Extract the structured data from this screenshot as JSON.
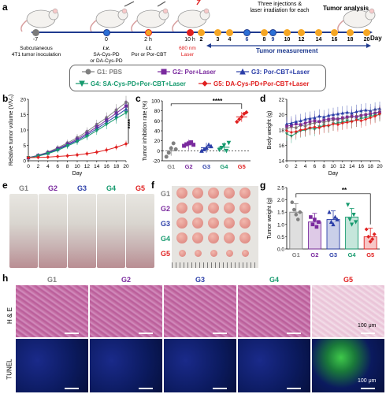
{
  "panel_labels": {
    "a": "a",
    "b": "b",
    "c": "c",
    "d": "d",
    "e": "e",
    "f": "f",
    "g": "g",
    "h": "h"
  },
  "timeline": {
    "top_note": "Three injections &\nlaser irradiation for each",
    "tumor_analysis": "Tumor analysis",
    "day_label": "Day",
    "tumor_measurement": "Tumor measurement",
    "mouse_steps": [
      {
        "day": "-7",
        "line1": "Subcutaneous",
        "line2": "4T1 tumor inoculation"
      },
      {
        "day": "0",
        "line1": "i.v.",
        "line2": "SA-Cys-PD",
        "line3": "or DA-Cys-PD"
      },
      {
        "day": "2 h",
        "line1": "i.t.",
        "line2": "Por or Por-CBT"
      },
      {
        "day": "10 h",
        "line1": "680 nm",
        "line2": "Laser"
      }
    ],
    "days": [
      "2",
      "3",
      "4",
      "6",
      "8",
      "9",
      "10",
      "12",
      "14",
      "16",
      "18",
      "20"
    ],
    "colors": {
      "arrow": "#1f3b8f",
      "dot_orange": "#f5a623",
      "dot_blue": "#2b6fd6",
      "laser": "#e02020",
      "grey": "#7a7a7a"
    }
  },
  "legend": {
    "items": [
      {
        "label": "G1: PBS",
        "color": "#808080",
        "marker": "circle"
      },
      {
        "label": "G2: Por+Laser",
        "color": "#7a2a9e",
        "marker": "square"
      },
      {
        "label": "G3: Por-CBT+Laser",
        "color": "#2b3ea8",
        "marker": "triangle"
      },
      {
        "label": "G4: SA-Cys-PD+Por-CBT+Laser",
        "color": "#169a6e",
        "marker": "triangle-down"
      },
      {
        "label": "G5: DA-Cys-PD+Por-CBT+Laser",
        "color": "#e02020",
        "marker": "diamond"
      }
    ]
  },
  "groups": [
    "G1",
    "G2",
    "G3",
    "G4",
    "G5"
  ],
  "group_colors": [
    "#808080",
    "#7a2a9e",
    "#2b3ea8",
    "#169a6e",
    "#e02020"
  ],
  "chart_data": [
    {
      "type": "line",
      "ylabel": "Relative tumor volume (V/V₀)",
      "xlabel": "Day",
      "x": [
        0,
        2,
        4,
        6,
        8,
        10,
        12,
        14,
        16,
        18,
        20
      ],
      "xticks": [
        "0",
        "2",
        "4",
        "6",
        "8",
        "10",
        "12",
        "14",
        "16",
        "18",
        "20"
      ],
      "ylim": [
        0,
        20
      ],
      "yticks": [
        "0",
        "5",
        "10",
        "15",
        "20"
      ],
      "significance": "****",
      "series": [
        {
          "name": "G1",
          "values": [
            1,
            1.8,
            2.8,
            4.2,
            5.8,
            7.5,
            9.5,
            11.8,
            14,
            16.5,
            19
          ]
        },
        {
          "name": "G2",
          "values": [
            1,
            1.7,
            2.6,
            3.9,
            5.4,
            7,
            8.9,
            11,
            13.2,
            15.5,
            17.8
          ]
        },
        {
          "name": "G3",
          "values": [
            1,
            1.6,
            2.5,
            3.7,
            5.1,
            6.6,
            8.4,
            10.4,
            12.5,
            14.6,
            16.8
          ]
        },
        {
          "name": "G4",
          "values": [
            1,
            1.5,
            2.3,
            3.4,
            4.8,
            6.2,
            7.9,
            9.8,
            11.8,
            13.8,
            15.6
          ]
        },
        {
          "name": "G5",
          "values": [
            1,
            1.1,
            1.2,
            1.4,
            1.6,
            1.9,
            2.3,
            2.8,
            3.5,
            4.4,
            5.5
          ]
        }
      ]
    },
    {
      "type": "scatter",
      "ylabel": "Tumor inhibition rate (%)",
      "categories": [
        "G1",
        "G2",
        "G3",
        "G4",
        "G5"
      ],
      "ylim": [
        -20,
        100
      ],
      "yticks": [
        "-20",
        "0",
        "20",
        "40",
        "60",
        "80",
        "100"
      ],
      "significance": "****",
      "means": [
        0,
        12,
        6,
        7,
        68
      ],
      "points": [
        [
          -12,
          -4,
          5,
          15,
          3
        ],
        [
          10,
          13,
          15,
          17,
          12
        ],
        [
          0,
          3,
          6,
          12,
          9
        ],
        [
          2,
          6,
          11,
          0,
          16
        ],
        [
          58,
          63,
          68,
          74,
          77
        ]
      ]
    },
    {
      "type": "line",
      "ylabel": "Body weight (g)",
      "xlabel": "Day",
      "x": [
        0,
        1,
        2,
        3,
        4,
        5,
        6,
        7,
        8,
        9,
        10,
        11,
        12,
        13,
        14,
        15,
        16,
        17,
        18,
        19,
        20
      ],
      "xticks": [
        "0",
        "2",
        "4",
        "6",
        "8",
        "10",
        "12",
        "14",
        "16",
        "18",
        "20"
      ],
      "ylim": [
        14,
        22
      ],
      "yticks": [
        "14",
        "16",
        "18",
        "20",
        "22"
      ],
      "series": [
        {
          "name": "G1",
          "values": [
            18.2,
            18.4,
            18.3,
            18.6,
            18.5,
            18.8,
            18.9,
            19.1,
            19,
            19.2,
            19.3,
            19.5,
            19.4,
            19.6,
            19.7,
            19.8,
            19.9,
            20,
            20.1,
            20.2,
            20.4
          ]
        },
        {
          "name": "G2",
          "values": [
            18.5,
            18.6,
            18.8,
            18.7,
            18.9,
            19.1,
            19.2,
            19.1,
            19.3,
            19.4,
            19.5,
            19.4,
            19.6,
            19.7,
            19.8,
            19.7,
            19.9,
            20,
            20.1,
            20.2,
            20.3
          ]
        },
        {
          "name": "G3",
          "values": [
            18.8,
            18.9,
            19.1,
            19.2,
            19.4,
            19.5,
            19.6,
            19.8,
            19.7,
            19.9,
            20,
            20.1,
            20.2,
            20.3,
            20.2,
            20.4,
            20.5,
            20.6,
            20.5,
            20.7,
            20.8
          ]
        },
        {
          "name": "G4",
          "values": [
            17.5,
            17.2,
            17.6,
            17.9,
            18,
            18.2,
            18.1,
            18.4,
            18.6,
            18.5,
            18.8,
            18.9,
            19,
            19.2,
            19.1,
            19.3,
            19.5,
            19.6,
            19.8,
            19.9,
            20
          ]
        },
        {
          "name": "G5",
          "values": [
            17.9,
            17.7,
            17.8,
            18,
            18.1,
            18.3,
            18.4,
            18.3,
            18.5,
            18.6,
            18.8,
            18.7,
            18.9,
            19,
            19.1,
            19.3,
            19.2,
            19.4,
            19.6,
            19.8,
            20.1
          ]
        }
      ]
    },
    {
      "type": "bar",
      "ylabel": "Tumor weight (g)",
      "categories": [
        "G1",
        "G2",
        "G3",
        "G4",
        "G5"
      ],
      "values": [
        1.5,
        1.1,
        1.2,
        1.3,
        0.5
      ],
      "ylim": [
        0,
        2.5
      ],
      "yticks": [
        "0.0",
        "0.5",
        "1.0",
        "1.5",
        "2.0",
        "2.5"
      ],
      "significance": "**",
      "points": [
        [
          1.9,
          1.6,
          1.4,
          1.2,
          1.5
        ],
        [
          1.3,
          1.0,
          1.2,
          0.9,
          1.1
        ],
        [
          1.5,
          1.1,
          1.0,
          1.3,
          1.2
        ],
        [
          1.8,
          1.2,
          1.0,
          1.4,
          1.1
        ],
        [
          0.8,
          0.5,
          0.3,
          0.4,
          0.6
        ]
      ]
    }
  ],
  "panel_h": {
    "rows": [
      "H & E",
      "TUNEL"
    ],
    "scale_bar": "100 μm"
  }
}
